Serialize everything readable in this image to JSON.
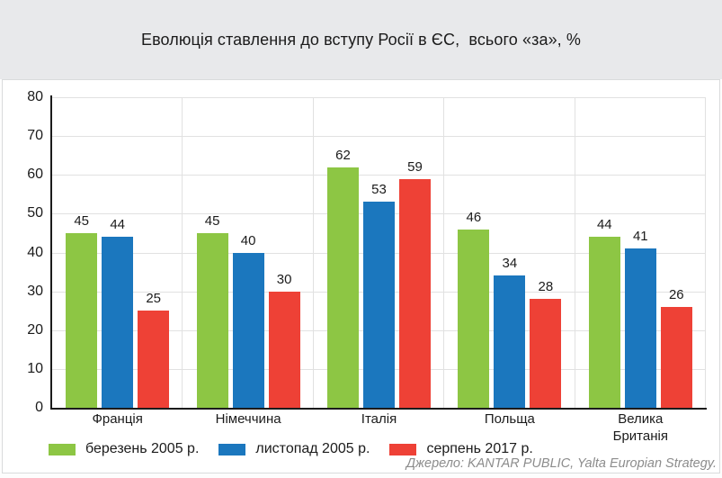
{
  "header": {
    "title": "Еволюція ставлення до вступу Росії в ЄС,  всього «за», %"
  },
  "footer": {
    "source": "Джерело: KANTAR PUBLIC, Yalta Europian Strategy."
  },
  "colors": {
    "header_band": "#e8e9eb",
    "grid": "#e1e1e1",
    "axis": "#1b1b1b",
    "series_green": "#8dc644",
    "series_blue": "#1b77be",
    "series_red": "#ee4136"
  },
  "chart_data": {
    "type": "bar",
    "title": "Еволюція ставлення до вступу Росії в ЄС,  всього «за», %",
    "categories": [
      "Франція",
      "Німеччина",
      "Італія",
      "Польща",
      "Велика Британія"
    ],
    "series": [
      {
        "name": "березень 2005 р.",
        "color": "#8dc644",
        "values": [
          45,
          45,
          62,
          46,
          44
        ]
      },
      {
        "name": "листопад 2005 р.",
        "color": "#1b77be",
        "values": [
          44,
          40,
          53,
          34,
          41
        ]
      },
      {
        "name": "серпень 2017 р.",
        "color": "#ee4136",
        "values": [
          25,
          30,
          59,
          28,
          26
        ]
      }
    ],
    "xlabel": "",
    "ylabel": "",
    "ylim": [
      0,
      80
    ],
    "ytick_step": 10,
    "grid": true,
    "value_labels": true,
    "legend_position": "bottom",
    "source": "Джерело: KANTAR PUBLIC, Yalta Europian Strategy."
  }
}
